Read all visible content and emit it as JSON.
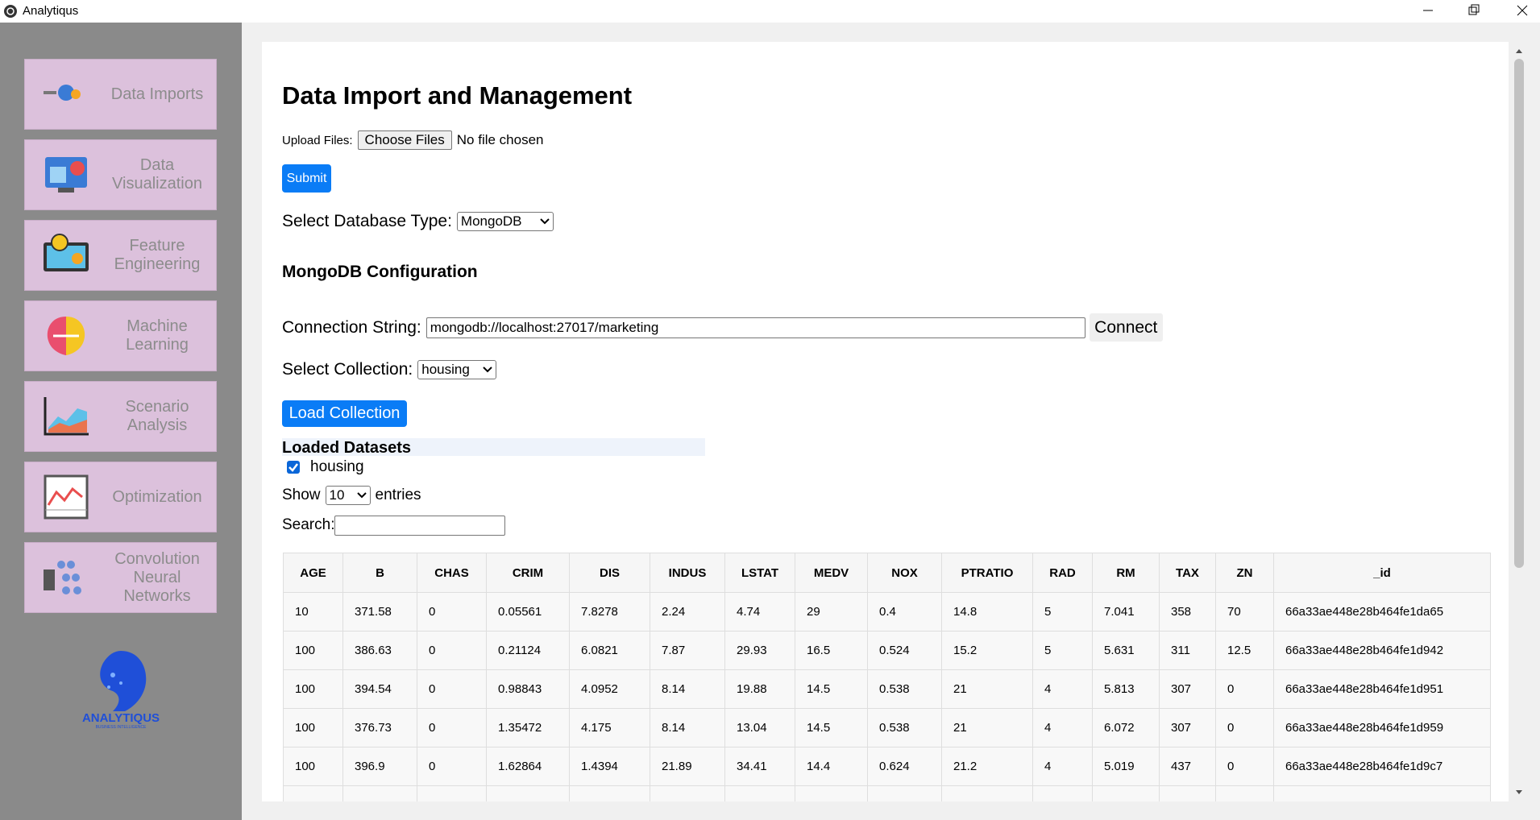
{
  "window": {
    "title": "Analytiqus"
  },
  "sidebar": {
    "items": [
      "Data Imports",
      "Data Visualization",
      "Feature Engineering",
      "Machine Learning",
      "Scenario Analysis",
      "Optimization",
      "Convolution Neural Networks"
    ],
    "logo": {
      "name": "ANALYTIQUS",
      "tagline": "BUSINESS INTELLIGENCE"
    }
  },
  "page": {
    "title": "Data Import and Management",
    "upload": {
      "label": "Upload Files:",
      "button": "Choose Files",
      "status": "No file chosen"
    },
    "submit": "Submit",
    "db_type": {
      "label": "Select Database Type:",
      "value": "MongoDB"
    },
    "config_title": "MongoDB Configuration",
    "connection": {
      "label": "Connection String:",
      "value": "mongodb://localhost:27017/marketing",
      "button": "Connect"
    },
    "collection": {
      "label": "Select Collection:",
      "value": "housing"
    },
    "load_button": "Load Collection",
    "loaded": {
      "title": "Loaded Datasets",
      "items": [
        "housing"
      ]
    },
    "show": {
      "before": "Show",
      "value": "10",
      "after": "entries"
    },
    "search_label": "Search:"
  },
  "table": {
    "columns": [
      "AGE",
      "B",
      "CHAS",
      "CRIM",
      "DIS",
      "INDUS",
      "LSTAT",
      "MEDV",
      "NOX",
      "PTRATIO",
      "RAD",
      "RM",
      "TAX",
      "ZN",
      "_id"
    ],
    "rows": [
      [
        "10",
        "371.58",
        "0",
        "0.05561",
        "7.8278",
        "2.24",
        "4.74",
        "29",
        "0.4",
        "14.8",
        "5",
        "7.041",
        "358",
        "70",
        "66a33ae448e28b464fe1da65"
      ],
      [
        "100",
        "386.63",
        "0",
        "0.21124",
        "6.0821",
        "7.87",
        "29.93",
        "16.5",
        "0.524",
        "15.2",
        "5",
        "5.631",
        "311",
        "12.5",
        "66a33ae448e28b464fe1d942"
      ],
      [
        "100",
        "394.54",
        "0",
        "0.98843",
        "4.0952",
        "8.14",
        "19.88",
        "14.5",
        "0.538",
        "21",
        "4",
        "5.813",
        "307",
        "0",
        "66a33ae448e28b464fe1d951"
      ],
      [
        "100",
        "376.73",
        "0",
        "1.35472",
        "4.175",
        "8.14",
        "13.04",
        "14.5",
        "0.538",
        "21",
        "4",
        "6.072",
        "307",
        "0",
        "66a33ae448e28b464fe1d959"
      ],
      [
        "100",
        "396.9",
        "0",
        "1.62864",
        "1.4394",
        "21.89",
        "34.41",
        "14.4",
        "0.624",
        "21.2",
        "4",
        "5.019",
        "437",
        "0",
        "66a33ae448e28b464fe1d9c7"
      ]
    ]
  }
}
